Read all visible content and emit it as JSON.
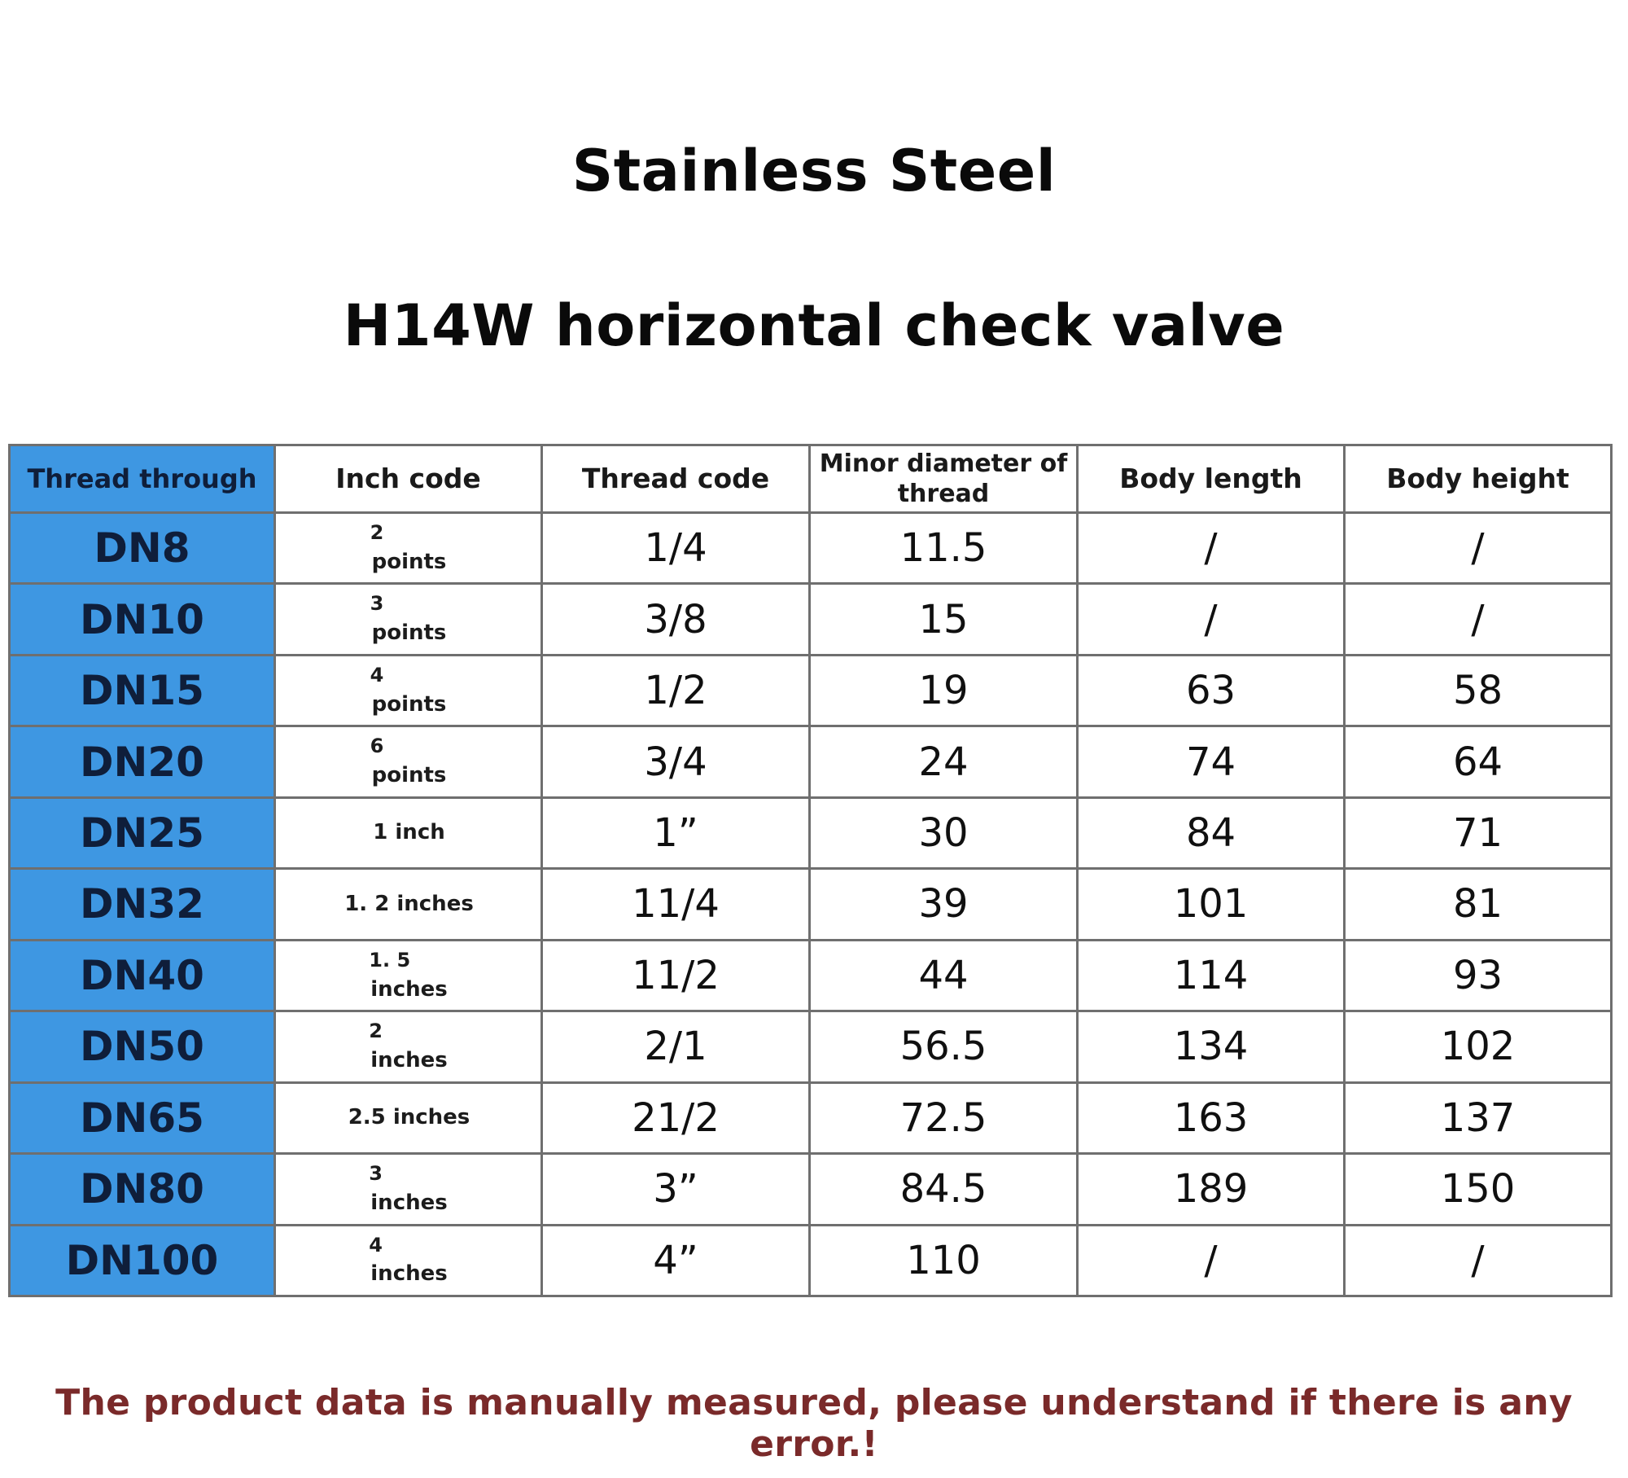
{
  "title_line1": "Stainless Steel",
  "title_line2": "H14W horizontal check valve",
  "table": {
    "headers": {
      "thread_through": "Thread through",
      "inch_code": "Inch code",
      "thread_code": "Thread code",
      "minor_diameter": "Minor diameter of thread",
      "body_length": "Body length",
      "body_height": "Body height"
    },
    "rows": [
      {
        "dn": "DN8",
        "inch_top": "2",
        "inch_bottom": "points",
        "thread_code": "1/4",
        "minor_diameter": "11.5",
        "body_length": "/",
        "body_height": "/"
      },
      {
        "dn": "DN10",
        "inch_top": "3",
        "inch_bottom": "points",
        "thread_code": "3/8",
        "minor_diameter": "15",
        "body_length": "/",
        "body_height": "/"
      },
      {
        "dn": "DN15",
        "inch_top": "4",
        "inch_bottom": "points",
        "thread_code": "1/2",
        "minor_diameter": "19",
        "body_length": "63",
        "body_height": "58"
      },
      {
        "dn": "DN20",
        "inch_top": "6",
        "inch_bottom": "points",
        "thread_code": "3/4",
        "minor_diameter": "24",
        "body_length": "74",
        "body_height": "64"
      },
      {
        "dn": "DN25",
        "inch_top": "",
        "inch_bottom": "1 inch",
        "thread_code": "1”",
        "minor_diameter": "30",
        "body_length": "84",
        "body_height": "71"
      },
      {
        "dn": "DN32",
        "inch_top": "",
        "inch_bottom": "1. 2 inches",
        "thread_code": "11/4",
        "minor_diameter": "39",
        "body_length": "101",
        "body_height": "81"
      },
      {
        "dn": "DN40",
        "inch_top": "1. 5",
        "inch_bottom": "inches",
        "thread_code": "11/2",
        "minor_diameter": "44",
        "body_length": "114",
        "body_height": "93"
      },
      {
        "dn": "DN50",
        "inch_top": "2",
        "inch_bottom": "inches",
        "thread_code": "2/1",
        "minor_diameter": "56.5",
        "body_length": "134",
        "body_height": "102"
      },
      {
        "dn": "DN65",
        "inch_top": "",
        "inch_bottom": "2.5 inches",
        "thread_code": "21/2",
        "minor_diameter": "72.5",
        "body_length": "163",
        "body_height": "137"
      },
      {
        "dn": "DN80",
        "inch_top": "3",
        "inch_bottom": "inches",
        "thread_code": "3”",
        "minor_diameter": "84.5",
        "body_length": "189",
        "body_height": "150"
      },
      {
        "dn": "DN100",
        "inch_top": "4",
        "inch_bottom": "inches",
        "thread_code": "4”",
        "minor_diameter": "110",
        "body_length": "/",
        "body_height": "/"
      }
    ]
  },
  "footnote": "The product data is manually measured, please understand if there is any error.!",
  "colors": {
    "first_column_bg": "#3e97e2",
    "footnote_text": "#7a2a2a"
  }
}
